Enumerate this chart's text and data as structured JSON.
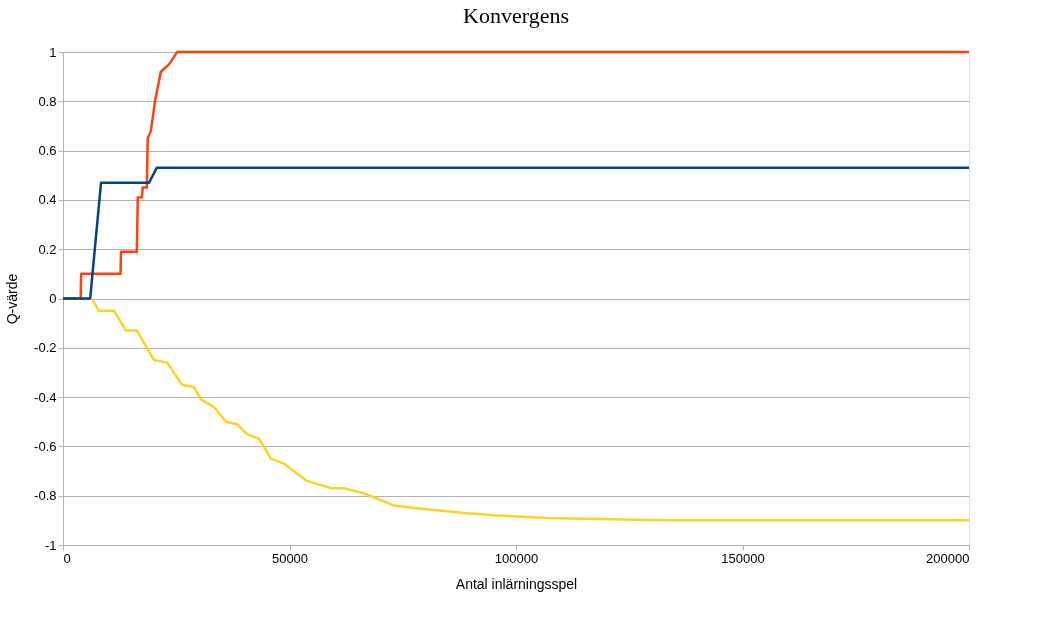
{
  "chart_data": {
    "type": "line",
    "title": "Konvergens",
    "xlabel": "Antal inlärningsspel",
    "ylabel": "Q-värde",
    "xlim": [
      0,
      200000
    ],
    "xticks": [
      0,
      50000,
      100000,
      150000,
      200000
    ],
    "ylim": [
      -1,
      1
    ],
    "yticks": [
      -1,
      -0.8,
      -0.6,
      -0.4,
      -0.2,
      0,
      0.2,
      0.4,
      0.6,
      0.8,
      1
    ],
    "grid": "y",
    "legend": false,
    "marker": "none",
    "line_style": "solid",
    "series": [
      {
        "color": "#ff420e",
        "x": [
          0,
          3900,
          4000,
          12700,
          12800,
          16300,
          16500,
          17400,
          17600,
          18500,
          18700,
          19400,
          20300,
          21600,
          23400,
          25200,
          200000
        ],
        "values": [
          0,
          0,
          0.1,
          0.1,
          0.19,
          0.19,
          0.41,
          0.41,
          0.45,
          0.45,
          0.65,
          0.68,
          0.8,
          0.92,
          0.95,
          1,
          1
        ]
      },
      {
        "color": "#004586",
        "x": [
          0,
          6000,
          8400,
          19000,
          20700,
          200000
        ],
        "values": [
          0,
          0,
          0.47,
          0.47,
          0.53,
          0.53
        ]
      },
      {
        "color": "#ffd320",
        "x": [
          6400,
          7900,
          11300,
          13900,
          16300,
          20100,
          23000,
          26300,
          28900,
          30500,
          33300,
          36000,
          38400,
          40600,
          43300,
          45900,
          48800,
          53900,
          59200,
          62000,
          66400,
          73100,
          77500,
          88500,
          95800,
          106800,
          117900,
          132700,
          200000
        ],
        "values": [
          0,
          -0.05,
          -0.05,
          -0.13,
          -0.13,
          -0.25,
          -0.26,
          -0.35,
          -0.36,
          -0.41,
          -0.44,
          -0.5,
          -0.51,
          -0.55,
          -0.57,
          -0.65,
          -0.67,
          -0.74,
          -0.77,
          -0.77,
          -0.79,
          -0.84,
          -0.85,
          -0.87,
          -0.88,
          -0.89,
          -0.895,
          -0.9,
          -0.9
        ]
      }
    ]
  }
}
